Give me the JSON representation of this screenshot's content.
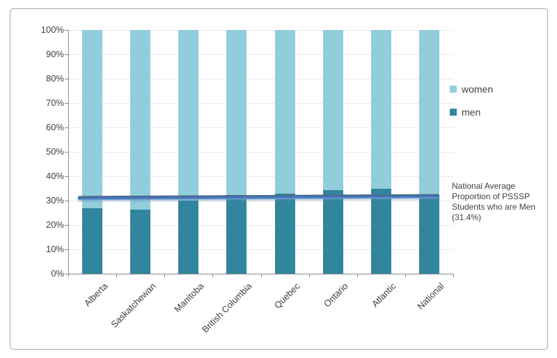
{
  "figure": {
    "background": "#ffffff",
    "border_color": "#a6a6a6"
  },
  "chart_data": {
    "type": "bar",
    "stacked": true,
    "title": "",
    "xlabel": "",
    "ylabel": "",
    "categories": [
      "Alberta",
      "Saskatchewan",
      "Manitoba",
      "British Columbia",
      "Quebec",
      "Ontario",
      "Atlantic",
      "National"
    ],
    "series": [
      {
        "name": "men",
        "color": "#31859c",
        "values": [
          27.0,
          26.3,
          30.0,
          32.3,
          32.8,
          34.2,
          34.9,
          31.4
        ]
      },
      {
        "name": "women",
        "color": "#92cddc",
        "values": [
          73.0,
          73.7,
          70.0,
          67.7,
          67.2,
          65.8,
          65.1,
          68.6
        ]
      }
    ],
    "ylim": [
      0,
      100
    ],
    "ytick_labels": [
      "0%",
      "10%",
      "20%",
      "30%",
      "40%",
      "50%",
      "60%",
      "70%",
      "80%",
      "90%",
      "100%"
    ],
    "grid": true,
    "legend": {
      "position": "right",
      "entries": [
        {
          "label": "women",
          "color": "#92cddc"
        },
        {
          "label": "men",
          "color": "#31859c"
        }
      ]
    },
    "reference_line": {
      "value": 31.4,
      "color": "#4a7ebb",
      "annotation": "National Average Proportion of PSSSP Students who are Men (31.4%)"
    },
    "axis_color": "#8a8a8a",
    "gridline_color": "#e7e9ec"
  }
}
